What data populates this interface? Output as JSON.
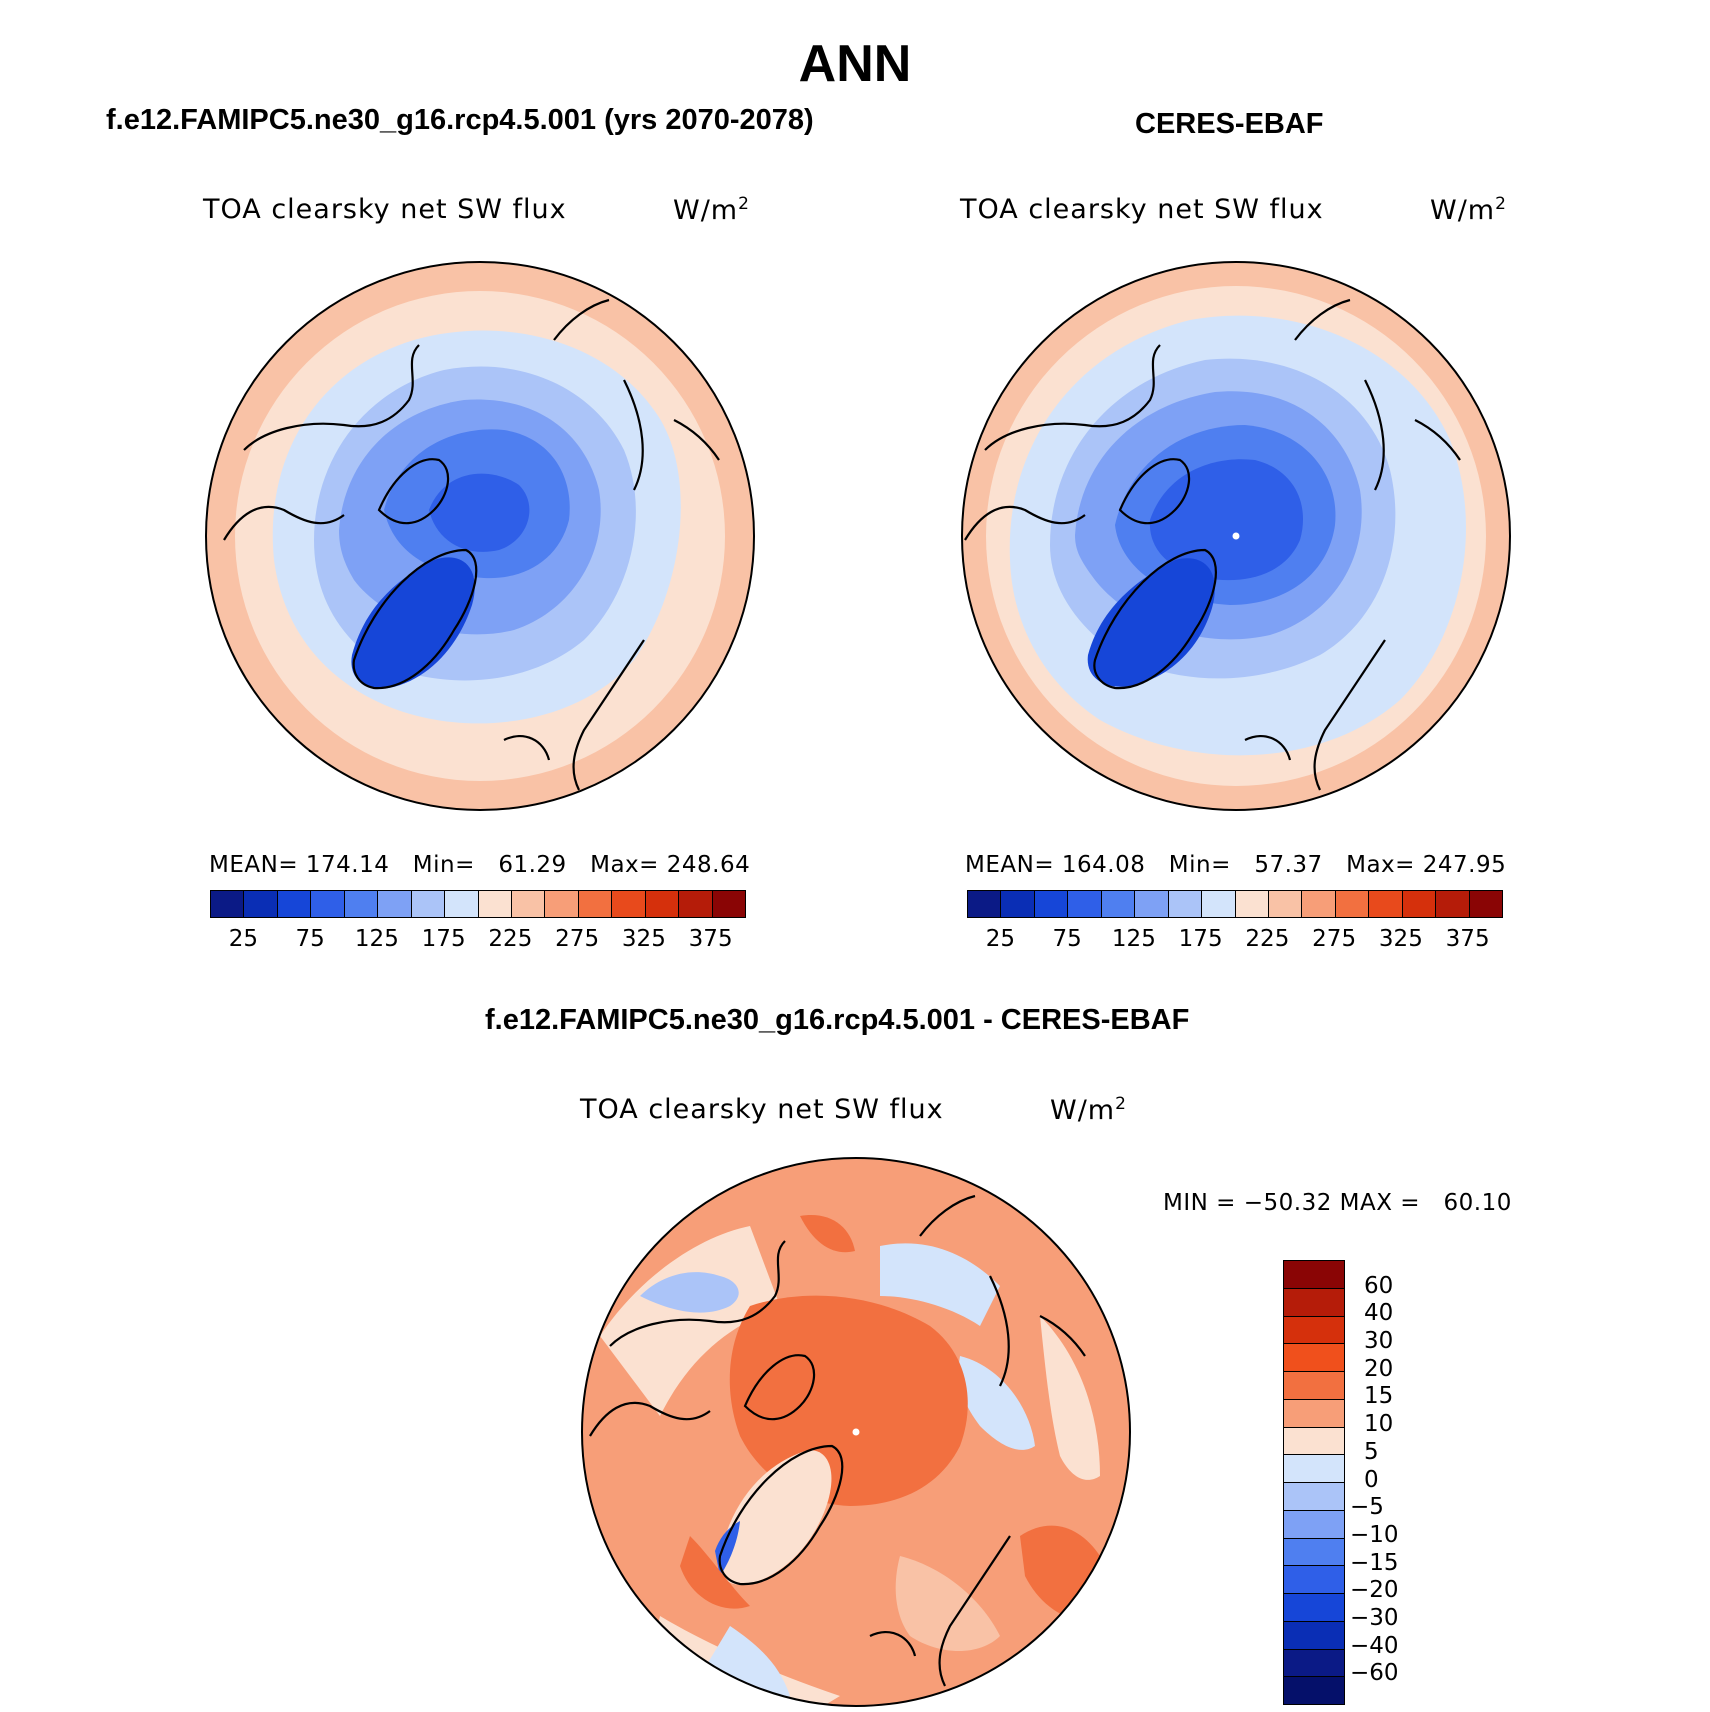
{
  "season": "ANN",
  "panel_test": {
    "case_title": "f.e12.FAMIPC5.ne30_g16.rcp4.5.001 (yrs 2070-2078)",
    "variable": "TOA clearsky net SW flux",
    "units_base": "W/m",
    "units_exp": "2",
    "stats": "MEAN= 174.14   Min=   61.29   Max= 248.64"
  },
  "panel_obs": {
    "case_title": "CERES-EBAF",
    "variable": "TOA clearsky net SW flux",
    "units_base": "W/m",
    "units_exp": "2",
    "stats": "MEAN= 164.08   Min=   57.37   Max= 247.95"
  },
  "panel_diff": {
    "case_title": "f.e12.FAMIPC5.ne30_g16.rcp4.5.001 - CERES-EBAF",
    "variable": "TOA clearsky net SW flux",
    "units_base": "W/m",
    "units_exp": "2",
    "stats": "MIN = −50.32 MAX =   60.10"
  },
  "colorbar_main": {
    "ticks": [
      "25",
      "75",
      "125",
      "175",
      "225",
      "275",
      "325",
      "375"
    ],
    "colors": [
      "#0b1a86",
      "#0a2eb5",
      "#1646d8",
      "#2f5fe8",
      "#4f7ff0",
      "#7ea1f5",
      "#abc4f8",
      "#d3e4fb",
      "#fbe1d1",
      "#f9c2a6",
      "#f79e78",
      "#f27040",
      "#e84a1c",
      "#d5300c",
      "#b51c09",
      "#8a0505"
    ]
  },
  "colorbar_diff": {
    "ticks": [
      "60",
      "40",
      "30",
      "20",
      "15",
      "10",
      "5",
      "0",
      "−5",
      "−10",
      "−15",
      "−20",
      "−30",
      "−40",
      "−60"
    ],
    "colors": [
      "#8a0505",
      "#b51c09",
      "#d5300c",
      "#f0501c",
      "#f27040",
      "#f79e78",
      "#fbe1d1",
      "#d3e4fb",
      "#abc4f8",
      "#7ea1f5",
      "#4f7ff0",
      "#2f5fe8",
      "#1646d8",
      "#0a2eb5",
      "#0b1a86",
      "#05106a"
    ]
  }
}
